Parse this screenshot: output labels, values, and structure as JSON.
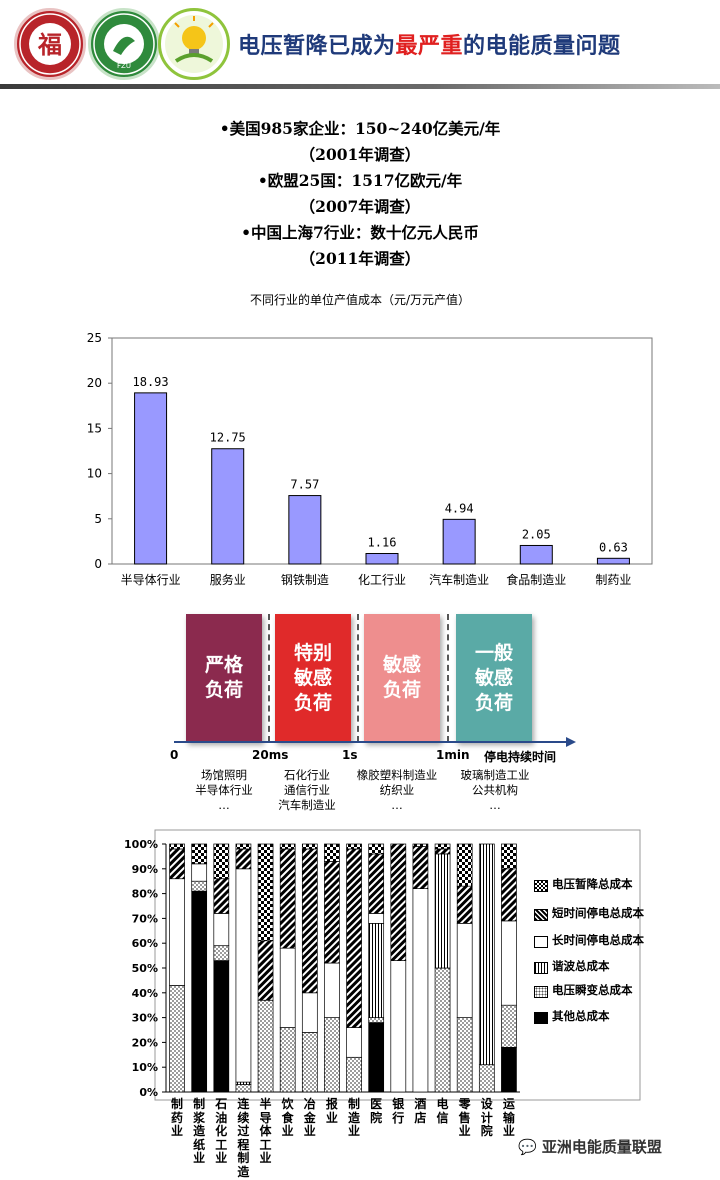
{
  "header": {
    "title_pre": "电压暂降已成为",
    "title_hl": "最严重",
    "title_post": "的电能质量问题",
    "logo1_text": "福",
    "logo1_ring": "FUZHOU UNIVERSITY",
    "logo2_text": "FZU"
  },
  "survey": {
    "lines": [
      "•美国985家企业：150~240亿美元/年",
      "（2001年调查）",
      "•欧盟25国：1517亿欧元/年",
      "（2007年调查）",
      "•中国上海7行业：数十亿元人民币",
      "（2011年调查）"
    ]
  },
  "chart_data": [
    {
      "type": "bar",
      "title": "不同行业的单位产值成本（元/万元产值）",
      "categories": [
        "半导体行业",
        "服务业",
        "钢铁制造",
        "化工行业",
        "汽车制造业",
        "食品制造业",
        "制药业"
      ],
      "values": [
        18.93,
        12.75,
        7.57,
        1.16,
        4.94,
        2.05,
        0.63
      ],
      "value_labels": [
        "18.93",
        "12.75",
        "7.57",
        "1.16",
        "4.94",
        "2.05",
        "0.63"
      ],
      "ylim": [
        0,
        25
      ],
      "yticks": [
        "0",
        "5",
        "10",
        "15",
        "20",
        "25"
      ],
      "bar_color": "#9999ff",
      "grid": false
    },
    {
      "type": "bar",
      "stacked": true,
      "percent": true,
      "categories": [
        "制药业",
        "制浆造纸业",
        "石油化工业",
        "连续过程制造",
        "半导体工业",
        "饮食业",
        "冶金业",
        "报业",
        "制造业",
        "医院",
        "银行",
        "酒店",
        "电信",
        "零售业",
        "设计院",
        "运输业"
      ],
      "yticks": [
        "0%",
        "10%",
        "20%",
        "30%",
        "40%",
        "50%",
        "60%",
        "70%",
        "80%",
        "90%",
        "100%"
      ],
      "legend_placement": "right",
      "series": [
        {
          "name": "其他总成本",
          "values": [
            0,
            81,
            53,
            0,
            0,
            0,
            0,
            0,
            0,
            28,
            0,
            0,
            0,
            0,
            0,
            18
          ]
        },
        {
          "name": "电压瞬变总成本",
          "values": [
            43,
            4,
            6,
            3,
            37,
            26,
            24,
            30,
            14,
            2,
            0,
            0,
            50,
            30,
            11,
            17
          ]
        },
        {
          "name": "谐波总成本",
          "values": [
            0,
            0,
            0,
            1,
            0,
            0,
            0,
            0,
            0,
            38,
            0,
            0,
            46,
            0,
            89,
            0
          ]
        },
        {
          "name": "长时间停电总成本",
          "values": [
            43,
            7,
            13,
            86,
            0,
            32,
            16,
            22,
            12,
            4,
            53,
            82,
            0,
            38,
            0,
            34
          ]
        },
        {
          "name": "短时间停电总成本",
          "values": [
            12,
            0,
            14,
            8,
            24,
            40,
            58,
            41,
            72,
            24,
            47,
            17,
            2,
            15,
            0,
            21
          ]
        },
        {
          "name": "电压暂降总成本",
          "values": [
            2,
            8,
            14,
            2,
            39,
            2,
            2,
            7,
            2,
            4,
            0,
            1,
            2,
            17,
            0,
            10
          ]
        }
      ]
    }
  ],
  "timeline": {
    "boxes": [
      {
        "label": "严格\n负荷",
        "color": "#8b2a4e"
      },
      {
        "label": "特别\n敏感\n负荷",
        "color": "#e02a2a"
      },
      {
        "label": "敏感\n负荷",
        "color": "#ee8e8e"
      },
      {
        "label": "一般\n敏感\n负荷",
        "color": "#5aaaa6"
      }
    ],
    "ticks": [
      "0",
      "20ms",
      "1s",
      "1min",
      "停电持续时间"
    ],
    "industries": [
      "场馆照明\n半导体行业\n…",
      "石化行业\n通信行业\n汽车制造业",
      "橡胶塑料制造业\n纺织业\n…",
      "玻璃制造工业\n公共机构\n…"
    ]
  },
  "watermark": "亚洲电能质量联盟"
}
